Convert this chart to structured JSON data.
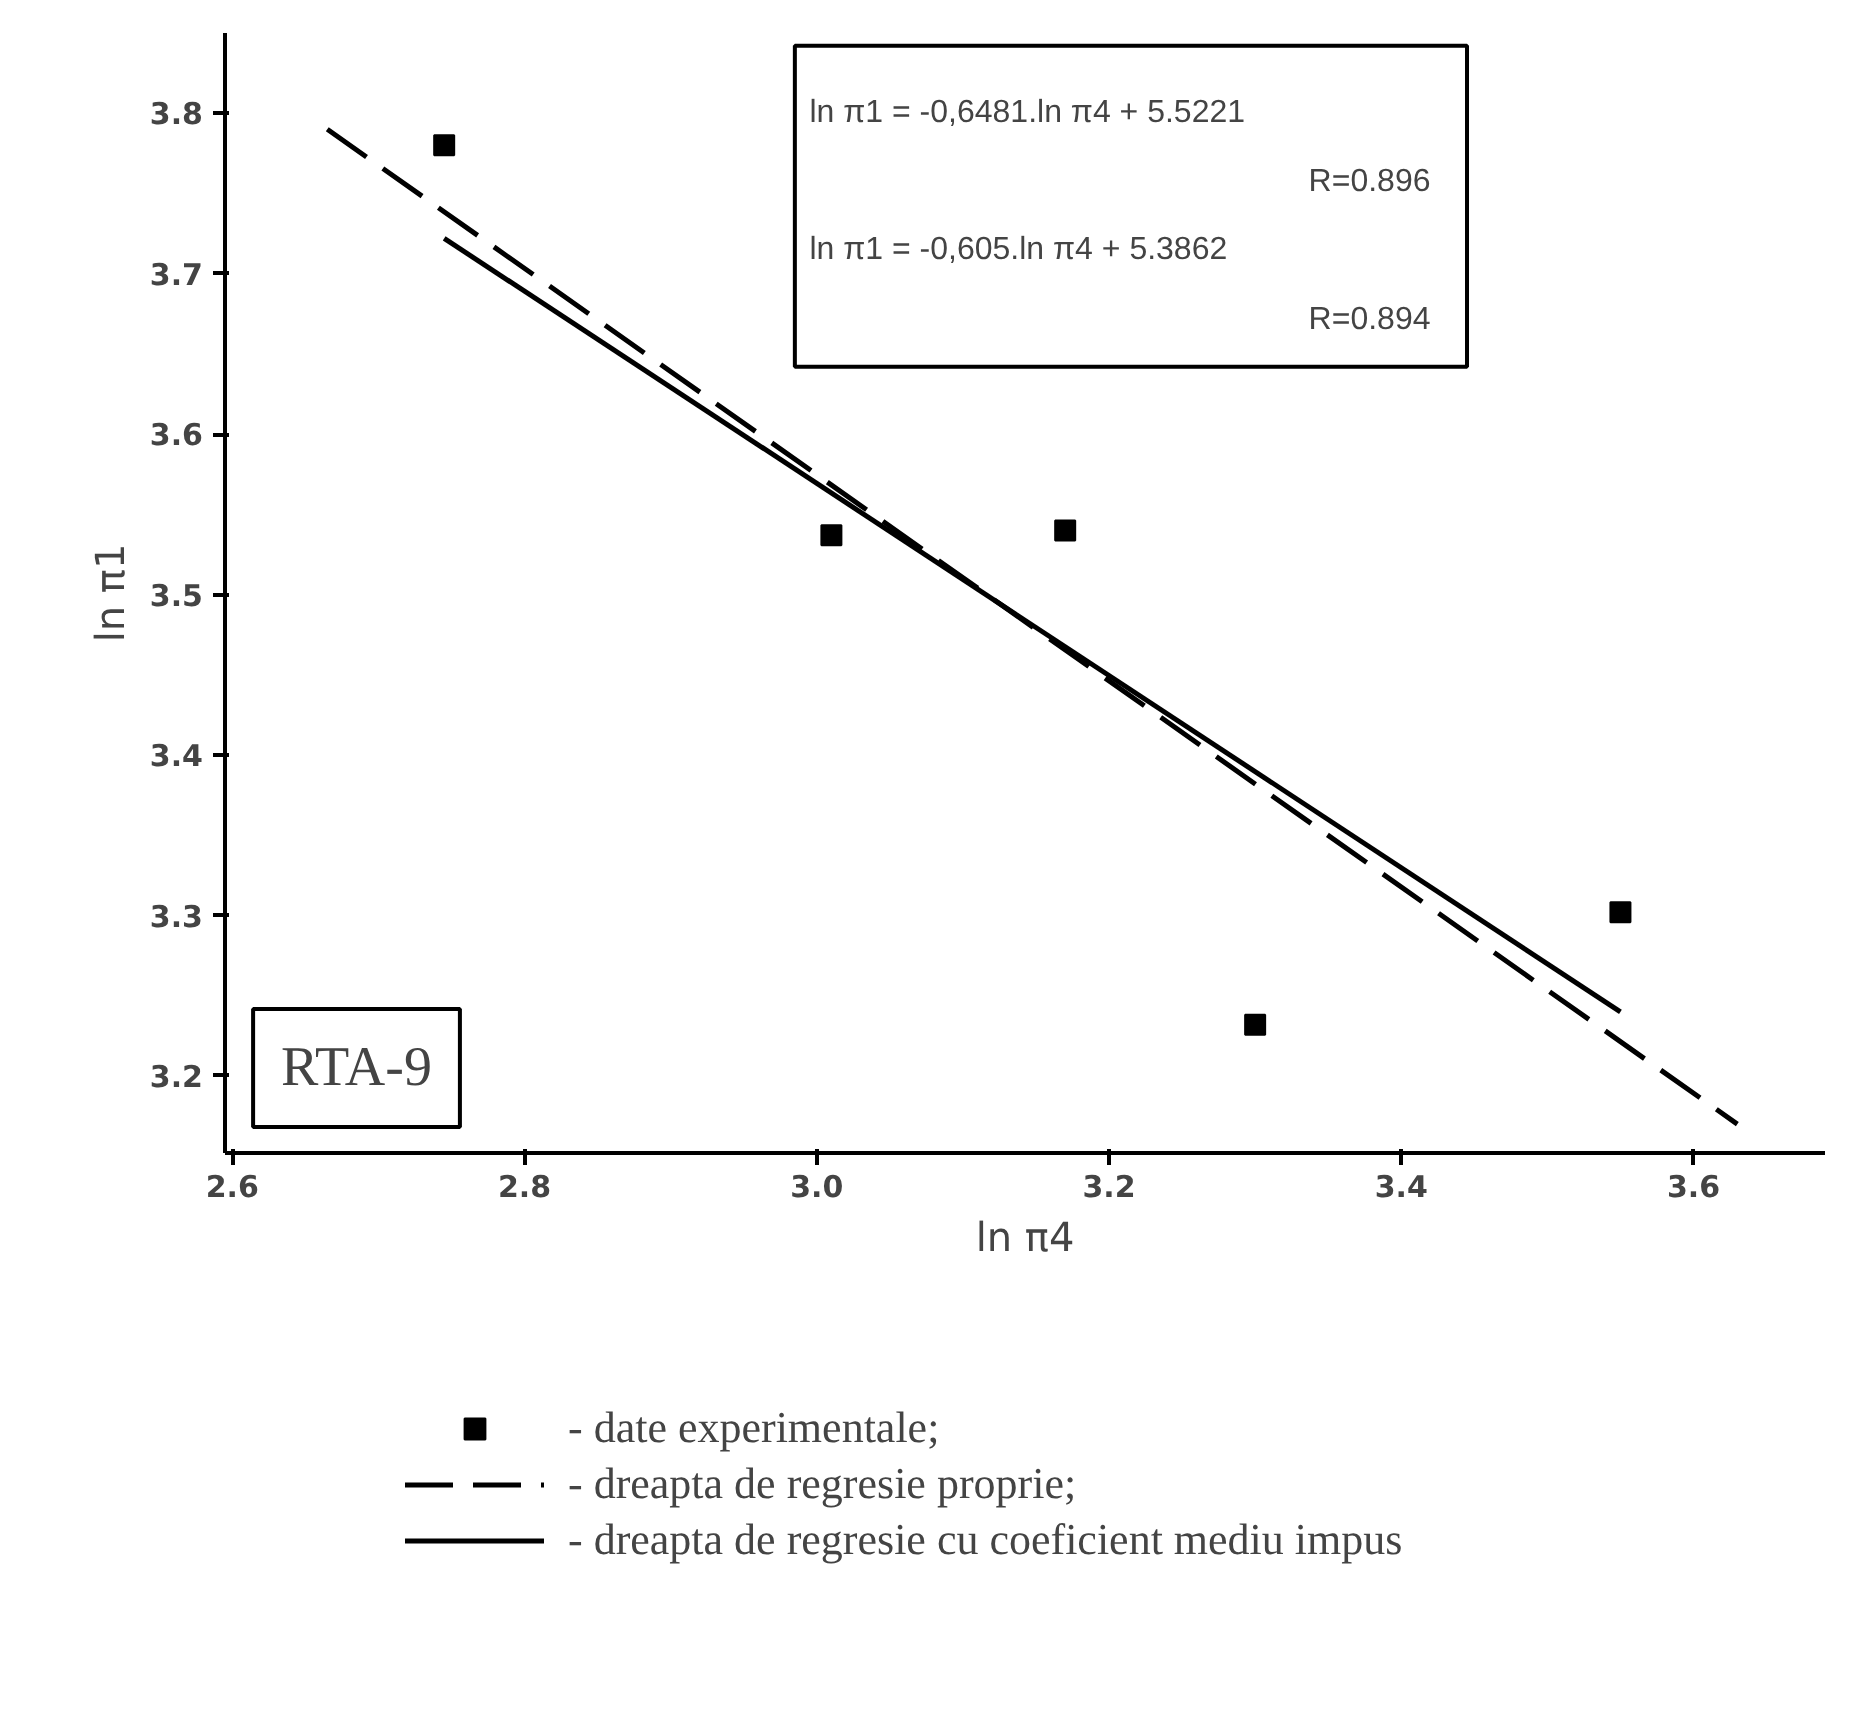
{
  "chart_data": {
    "type": "scatter",
    "xlabel": "ln π4",
    "ylabel": "ln π1",
    "xlim": [
      2.595,
      3.69
    ],
    "ylim": [
      3.152,
      3.85
    ],
    "xticks": [
      2.6,
      2.8,
      {
        "value": 3.0,
        "label": "3.0"
      },
      3.2,
      3.4,
      3.6
    ],
    "yticks": [
      3.2,
      3.3,
      3.4,
      3.5,
      3.6,
      3.7,
      3.8
    ],
    "grid": false,
    "legend": "bottom",
    "series": [
      {
        "name": "- date experimentale;",
        "marker": "square",
        "color": "#000000",
        "x": [
          2.745,
          3.01,
          3.17,
          3.3,
          3.55
        ],
        "values": [
          3.78,
          3.537,
          3.54,
          3.232,
          3.302
        ]
      },
      {
        "name": "- dreapta de regresie proprie;",
        "type": "line",
        "line_style": "dashed",
        "color": "#000000",
        "x": [
          2.665,
          3.63
        ],
        "values": [
          3.79,
          3.17
        ]
      },
      {
        "name": "- dreapta de regresie cu coeficient mediu impus",
        "type": "line",
        "line_style": "solid",
        "color": "#000000",
        "x": [
          2.745,
          3.55
        ],
        "values": [
          3.722,
          3.24
        ]
      }
    ],
    "annotations": [
      "ln π1 = -0,6481.ln π4 + 5.5221",
      "R=0.896",
      "ln π1 = -0,605.ln π4 + 5.3862",
      "R=0.894",
      "RTA-9"
    ]
  }
}
